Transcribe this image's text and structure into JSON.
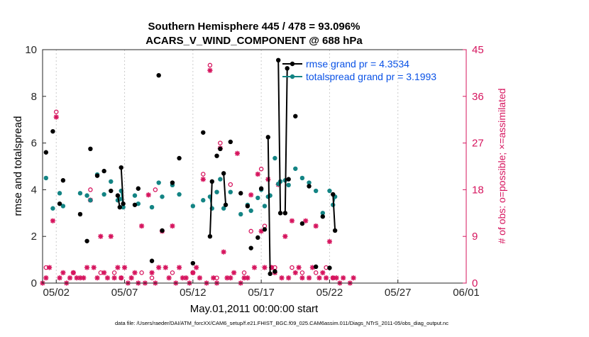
{
  "chart_data": {
    "type": "line",
    "title_line1": "Southern Hemisphere 445 / 478 = 93.096%",
    "title_line2": "ACARS_V_WIND_COMPONENT @ 688 hPa",
    "xlabel": "May.01,2011 00:00:00 start",
    "ylabel": "rmse and totalspread",
    "y2label": "# of obs: o=possible; ×=assimilated",
    "xlim": [
      0,
      31
    ],
    "ylim": [
      0,
      10
    ],
    "y2lim": [
      0,
      45
    ],
    "x_ticks": [
      {
        "x": 1,
        "label": "05/02"
      },
      {
        "x": 6,
        "label": "05/07"
      },
      {
        "x": 11,
        "label": "05/12"
      },
      {
        "x": 16,
        "label": "05/17"
      },
      {
        "x": 21,
        "label": "05/22"
      },
      {
        "x": 26,
        "label": "05/27"
      },
      {
        "x": 31,
        "label": "06/01"
      }
    ],
    "y_ticks": [
      0,
      2,
      4,
      6,
      8,
      10
    ],
    "y2_ticks": [
      0,
      9,
      18,
      27,
      36,
      45
    ],
    "colors": {
      "rmse": "#000000",
      "spread": "#138484",
      "obs": "#d6155e",
      "legend_text": "#0a52e6"
    },
    "series": [
      {
        "name": "rmse grand pr = 4.3534",
        "points": [
          [
            0.25,
            5.6
          ],
          [
            0.75,
            6.5
          ],
          [
            1.25,
            3.4
          ],
          [
            1.5,
            4.4
          ],
          [
            2.75,
            2.95
          ],
          [
            3.25,
            1.8
          ],
          [
            3.5,
            5.75
          ],
          [
            4.0,
            4.6
          ],
          [
            4.5,
            4.8
          ],
          [
            5.0,
            3.95
          ],
          [
            5.5,
            [
              3.75,
              3.25
            ]
          ],
          [
            5.75,
            [
              4.95,
              3.4
            ]
          ],
          [
            6.75,
            3.35
          ],
          [
            7.0,
            4.05
          ],
          [
            8.0,
            0.95
          ],
          [
            8.5,
            8.9
          ],
          [
            8.75,
            2.25
          ],
          [
            9.5,
            4.3
          ],
          [
            10.0,
            5.35
          ],
          [
            11.0,
            0.85
          ],
          [
            11.75,
            6.45
          ],
          [
            12.25,
            [
              2.0,
              4.35
            ]
          ],
          [
            12.75,
            5.45
          ],
          [
            13.0,
            5.75
          ],
          [
            13.25,
            [
              4.7,
              3.35
            ]
          ],
          [
            13.75,
            6.05
          ],
          [
            14.5,
            3.85
          ],
          [
            15.0,
            3.3
          ],
          [
            15.25,
            1.5
          ],
          [
            15.75,
            1.95
          ],
          [
            16.0,
            4.05
          ],
          [
            16.25,
            2.3
          ],
          [
            16.5,
            [
              6.25,
              0.4
            ]
          ],
          [
            17.0,
            0.5
          ],
          [
            17.25,
            [
              9.55,
              3.0
            ]
          ],
          [
            17.75,
            [
              3.0,
              9.2
            ]
          ],
          [
            18.0,
            4.45
          ],
          [
            18.5,
            7.15
          ],
          [
            19.0,
            2.55
          ],
          [
            19.5,
            4.15
          ],
          [
            20.0,
            0.7
          ],
          [
            20.5,
            2.85
          ],
          [
            21.0,
            0.65
          ],
          [
            21.25,
            [
              3.8,
              2.25
            ]
          ]
        ]
      },
      {
        "name": "totalspread grand pr = 3.1993",
        "points": [
          [
            0.25,
            4.5
          ],
          [
            0.75,
            3.2
          ],
          [
            1.25,
            3.85
          ],
          [
            1.5,
            3.3
          ],
          [
            2.75,
            3.85
          ],
          [
            3.25,
            3.75
          ],
          [
            3.5,
            3.55
          ],
          [
            4.0,
            4.65
          ],
          [
            4.5,
            3.8
          ],
          [
            5.0,
            4.35
          ],
          [
            5.5,
            [
              3.55,
              3.6
            ]
          ],
          [
            5.75,
            [
              3.95,
              3.25
            ]
          ],
          [
            6.75,
            3.75
          ],
          [
            7.0,
            3.4
          ],
          [
            8.0,
            3.25
          ],
          [
            8.5,
            4.3
          ],
          [
            8.75,
            3.7
          ],
          [
            9.5,
            4.2
          ],
          [
            10.0,
            3.8
          ],
          [
            11.0,
            3.3
          ],
          [
            11.75,
            3.55
          ],
          [
            12.25,
            [
              3.7,
              3.2
            ]
          ],
          [
            12.75,
            3.9
          ],
          [
            13.0,
            4.45
          ],
          [
            13.25,
            3.2
          ],
          [
            13.75,
            3.9
          ],
          [
            14.5,
            2.95
          ],
          [
            15.0,
            3.35
          ],
          [
            15.25,
            3.1
          ],
          [
            15.75,
            3.65
          ],
          [
            16.0,
            4.0
          ],
          [
            16.25,
            3.3
          ],
          [
            16.5,
            [
              3.7,
              3.75
            ]
          ],
          [
            17.0,
            5.35
          ],
          [
            17.25,
            [
              4.25,
              4.35
            ]
          ],
          [
            17.75,
            4.4
          ],
          [
            18.0,
            4.2
          ],
          [
            18.5,
            4.9
          ],
          [
            19.0,
            4.5
          ],
          [
            19.5,
            4.3
          ],
          [
            20.0,
            3.95
          ],
          [
            20.5,
            3.0
          ],
          [
            21.0,
            3.95
          ],
          [
            21.25,
            [
              3.35,
              3.7
            ]
          ]
        ]
      },
      {
        "name": "obs possible",
        "points": [
          [
            0.25,
            3
          ],
          [
            1.0,
            33
          ],
          [
            2.25,
            2
          ],
          [
            3.5,
            18
          ],
          [
            4.25,
            2
          ],
          [
            5.75,
            1
          ],
          [
            5.25,
            2
          ],
          [
            7.25,
            2
          ],
          [
            8.0,
            1
          ],
          [
            8.25,
            18
          ],
          [
            9.5,
            2
          ],
          [
            11.0,
            2
          ],
          [
            11.75,
            21
          ],
          [
            12.25,
            42
          ],
          [
            12.75,
            1
          ],
          [
            13.0,
            27
          ],
          [
            13.75,
            19
          ],
          [
            14.75,
            2
          ],
          [
            15.25,
            10
          ],
          [
            16.0,
            22
          ],
          [
            16.25,
            11
          ],
          [
            16.75,
            3
          ],
          [
            17.0,
            3
          ],
          [
            18.25,
            3
          ],
          [
            19.0,
            2
          ],
          [
            20.0,
            2
          ],
          [
            20.75,
            3
          ],
          [
            21.25,
            1
          ]
        ]
      },
      {
        "name": "obs assimilated",
        "points": [
          [
            0,
            0
          ],
          [
            0.25,
            1
          ],
          [
            0.5,
            3
          ],
          [
            0.75,
            12
          ],
          [
            1.0,
            32
          ],
          [
            1.25,
            1
          ],
          [
            1.5,
            2
          ],
          [
            1.75,
            0
          ],
          [
            2.0,
            1
          ],
          [
            2.25,
            2
          ],
          [
            2.5,
            1
          ],
          [
            2.75,
            1
          ],
          [
            3.0,
            1
          ],
          [
            3.25,
            3
          ],
          [
            3.5,
            16
          ],
          [
            3.75,
            3
          ],
          [
            4.0,
            1
          ],
          [
            4.25,
            9
          ],
          [
            4.5,
            2
          ],
          [
            4.75,
            1
          ],
          [
            5.0,
            9
          ],
          [
            5.25,
            1
          ],
          [
            5.5,
            3
          ],
          [
            5.75,
            1
          ],
          [
            6.0,
            3
          ],
          [
            6.25,
            0
          ],
          [
            6.5,
            1
          ],
          [
            6.75,
            2
          ],
          [
            7.0,
            0
          ],
          [
            7.25,
            11
          ],
          [
            7.5,
            0
          ],
          [
            7.75,
            17
          ],
          [
            8.0,
            2
          ],
          [
            8.25,
            0
          ],
          [
            8.5,
            3
          ],
          [
            8.75,
            10
          ],
          [
            9.0,
            3
          ],
          [
            9.25,
            1
          ],
          [
            9.5,
            11
          ],
          [
            9.75,
            0
          ],
          [
            10.0,
            3
          ],
          [
            10.25,
            1
          ],
          [
            10.5,
            1
          ],
          [
            10.75,
            0
          ],
          [
            11.0,
            2
          ],
          [
            11.25,
            3
          ],
          [
            11.5,
            1
          ],
          [
            11.75,
            20
          ],
          [
            12.0,
            0
          ],
          [
            12.25,
            41
          ],
          [
            12.5,
            1
          ],
          [
            12.75,
            0
          ],
          [
            13.0,
            26
          ],
          [
            13.25,
            6
          ],
          [
            13.5,
            1
          ],
          [
            13.75,
            1
          ],
          [
            14.0,
            2
          ],
          [
            14.25,
            25
          ],
          [
            14.5,
            0
          ],
          [
            14.75,
            1
          ],
          [
            15.0,
            1
          ],
          [
            15.25,
            17
          ],
          [
            15.5,
            3
          ],
          [
            15.75,
            21
          ],
          [
            16.0,
            10
          ],
          [
            16.25,
            3
          ],
          [
            16.5,
            20
          ],
          [
            16.75,
            3
          ],
          [
            17.0,
            2
          ],
          [
            17.25,
            19
          ],
          [
            17.5,
            1
          ],
          [
            17.75,
            9
          ],
          [
            18.0,
            1
          ],
          [
            18.25,
            12
          ],
          [
            18.5,
            2
          ],
          [
            18.75,
            3
          ],
          [
            19.0,
            1
          ],
          [
            19.25,
            12
          ],
          [
            19.5,
            1
          ],
          [
            19.75,
            3
          ],
          [
            20.0,
            11
          ],
          [
            20.25,
            1
          ],
          [
            20.5,
            2
          ],
          [
            20.75,
            1
          ],
          [
            21.0,
            8
          ],
          [
            21.25,
            1
          ],
          [
            21.5,
            1
          ],
          [
            21.75,
            0
          ],
          [
            22.0,
            1
          ],
          [
            22.5,
            0
          ],
          [
            22.75,
            1
          ]
        ]
      }
    ],
    "legend": [
      {
        "label": "rmse grand pr = 4.3534",
        "color": "#000000"
      },
      {
        "label": "totalspread grand pr = 3.1993",
        "color": "#138484"
      }
    ],
    "legend_position": "top-right",
    "footer": "data file: /Users/raeder/DAI/ATM_forcXX/CAM6_setup/f.e21.FHIST_BGC.f09_025.CAM6assim.011/Diags_NTrS_2011-05/obs_diag_output.nc"
  }
}
